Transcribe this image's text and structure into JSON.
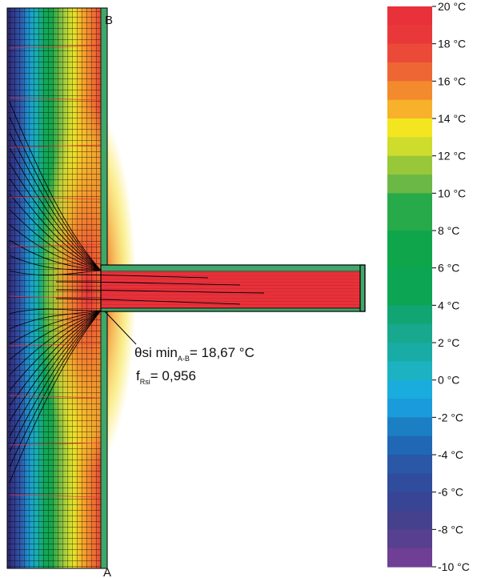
{
  "figure": {
    "point_top": "B",
    "point_bottom": "A",
    "annotation": {
      "theta_symbol": "θ",
      "theta_text": "si min",
      "theta_sub": "A-B",
      "theta_value": "= 18,67 °C",
      "f_symbol": "f",
      "f_sub": "Rsi",
      "f_value": "= 0,956"
    }
  },
  "legend": {
    "unit": "°C",
    "labels": [
      "20 °C",
      "18 °C",
      "16 °C",
      "14 °C",
      "12 °C",
      "10 °C",
      "8 °C",
      "6 °C",
      "4 °C",
      "2 °C",
      "0 °C",
      "-2 °C",
      "-4 °C",
      "-6 °C",
      "-8 °C",
      "-10 °C"
    ],
    "bands": [
      {
        "from": 19,
        "to": 20,
        "color": "#E8313A"
      },
      {
        "from": 18,
        "to": 19,
        "color": "#E9383A"
      },
      {
        "from": 17,
        "to": 18,
        "color": "#EB4A38"
      },
      {
        "from": 16,
        "to": 17,
        "color": "#EE6633"
      },
      {
        "from": 15,
        "to": 16,
        "color": "#F38A2E"
      },
      {
        "from": 14,
        "to": 15,
        "color": "#F7B12A"
      },
      {
        "from": 13,
        "to": 14,
        "color": "#F3E621"
      },
      {
        "from": 12,
        "to": 13,
        "color": "#CEDC2E"
      },
      {
        "from": 11,
        "to": 12,
        "color": "#98C83A"
      },
      {
        "from": 10,
        "to": 11,
        "color": "#6CB847"
      },
      {
        "from": 8,
        "to": 10,
        "color": "#27AA4A"
      },
      {
        "from": 6,
        "to": 8,
        "color": "#0FA64B"
      },
      {
        "from": 4,
        "to": 6,
        "color": "#0CA553"
      },
      {
        "from": 3,
        "to": 4,
        "color": "#12A574"
      },
      {
        "from": 2,
        "to": 3,
        "color": "#17A88E"
      },
      {
        "from": 1,
        "to": 2,
        "color": "#19ACA6"
      },
      {
        "from": 0,
        "to": 1,
        "color": "#1CB2C2"
      },
      {
        "from": -1,
        "to": 0,
        "color": "#19ACDC"
      },
      {
        "from": -2,
        "to": -1,
        "color": "#1A9BDB"
      },
      {
        "from": -3,
        "to": -2,
        "color": "#1C7FC3"
      },
      {
        "from": -4,
        "to": -3,
        "color": "#2068B5"
      },
      {
        "from": -5,
        "to": -4,
        "color": "#2A58A6"
      },
      {
        "from": -6,
        "to": -5,
        "color": "#2F4D9C"
      },
      {
        "from": -7,
        "to": -6,
        "color": "#384594"
      },
      {
        "from": -8,
        "to": -7,
        "color": "#45418D"
      },
      {
        "from": -9,
        "to": -8,
        "color": "#56408F"
      },
      {
        "from": -10,
        "to": -9,
        "color": "#6E3F95"
      }
    ]
  },
  "wall_gradient": [
    "#2E2A6E",
    "#303E95",
    "#2E60AF",
    "#1C9AD2",
    "#18B0AE",
    "#14A65E",
    "#15A84A",
    "#6CB847",
    "#B4D237",
    "#E6E329",
    "#F6B32A",
    "#F38A2E",
    "#EE6633",
    "#E8313A"
  ]
}
